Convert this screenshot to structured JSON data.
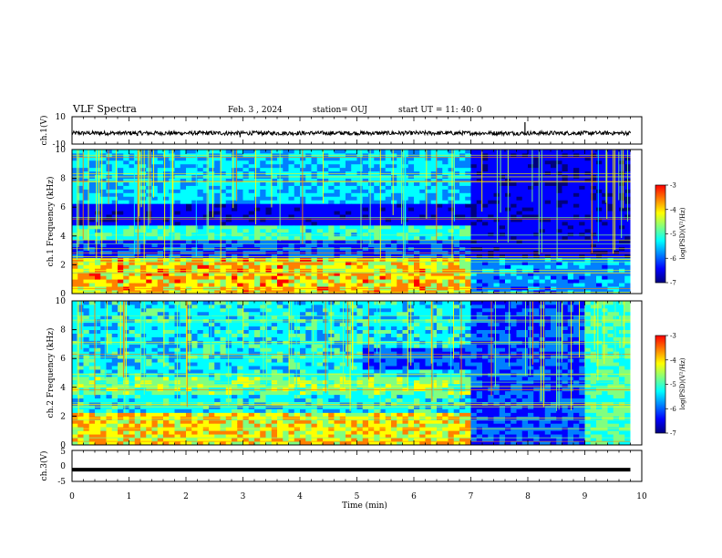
{
  "header": {
    "title": "VLF Spectra",
    "date": "Feb. 3  , 2024",
    "station": "station= OUJ",
    "start": "start  UT  =   11: 40: 0"
  },
  "chart_data": [
    {
      "type": "line",
      "name": "ch1-waveform",
      "ylabel": "ch.1(V)",
      "ylim": [
        -10,
        10
      ],
      "ytick_labels": [
        "10",
        "-10"
      ],
      "xlim": [
        0,
        10
      ],
      "x": [
        0,
        9.8
      ],
      "baseline": -2,
      "spikes": [
        {
          "x": 1.15,
          "y": -4
        },
        {
          "x": 2.95,
          "y": -5
        },
        {
          "x": 7.95,
          "y": 6
        }
      ]
    },
    {
      "type": "heatmap",
      "name": "ch1-spectrogram",
      "ylabel": "ch.1  Frequency  (kHz)",
      "ylim": [
        0,
        10
      ],
      "ytick_labels": [
        "0",
        "2",
        "4",
        "6",
        "8",
        "10"
      ],
      "xlim": [
        0,
        10
      ],
      "data_xmax": 9.8,
      "colorbar": {
        "label": "log(PSD)(V²/Hz)",
        "range": [
          -7,
          -3
        ],
        "tick_labels": [
          "-3",
          "-4",
          "-5",
          "-6",
          "-7"
        ]
      },
      "transition_min": 6.95
    },
    {
      "type": "heatmap",
      "name": "ch2-spectrogram",
      "ylabel": "ch.2  Frequency  (kHz)",
      "ylim": [
        0,
        10
      ],
      "ytick_labels": [
        "0",
        "2",
        "4",
        "6",
        "8",
        "10"
      ],
      "xlim": [
        0,
        10
      ],
      "data_xmax": 9.8,
      "colorbar": {
        "label": "log(PSD)(V²/Hz)",
        "range": [
          -7,
          -3
        ],
        "tick_labels": [
          "-3",
          "-4",
          "-5",
          "-6",
          "-7"
        ]
      },
      "transition_min": 6.95,
      "late_change_min": 9.0
    },
    {
      "type": "line",
      "name": "ch3-waveform",
      "ylabel": "ch.3(V)",
      "ylim": [
        -5,
        5
      ],
      "ytick_labels": [
        "5",
        "0",
        "-5"
      ],
      "xlim": [
        0,
        10
      ],
      "x": [
        0,
        9.8
      ],
      "baseline": -1.2
    }
  ],
  "xaxis": {
    "label": "Time  (min)",
    "tick_labels": [
      "0",
      "1",
      "2",
      "3",
      "4",
      "5",
      "6",
      "7",
      "8",
      "9",
      "10"
    ]
  },
  "colors": {
    "colormap": [
      "#00007f",
      "#0000ff",
      "#0080ff",
      "#00ffff",
      "#80ff80",
      "#ffff00",
      "#ff8000",
      "#ff0000",
      "#ffffff"
    ]
  }
}
